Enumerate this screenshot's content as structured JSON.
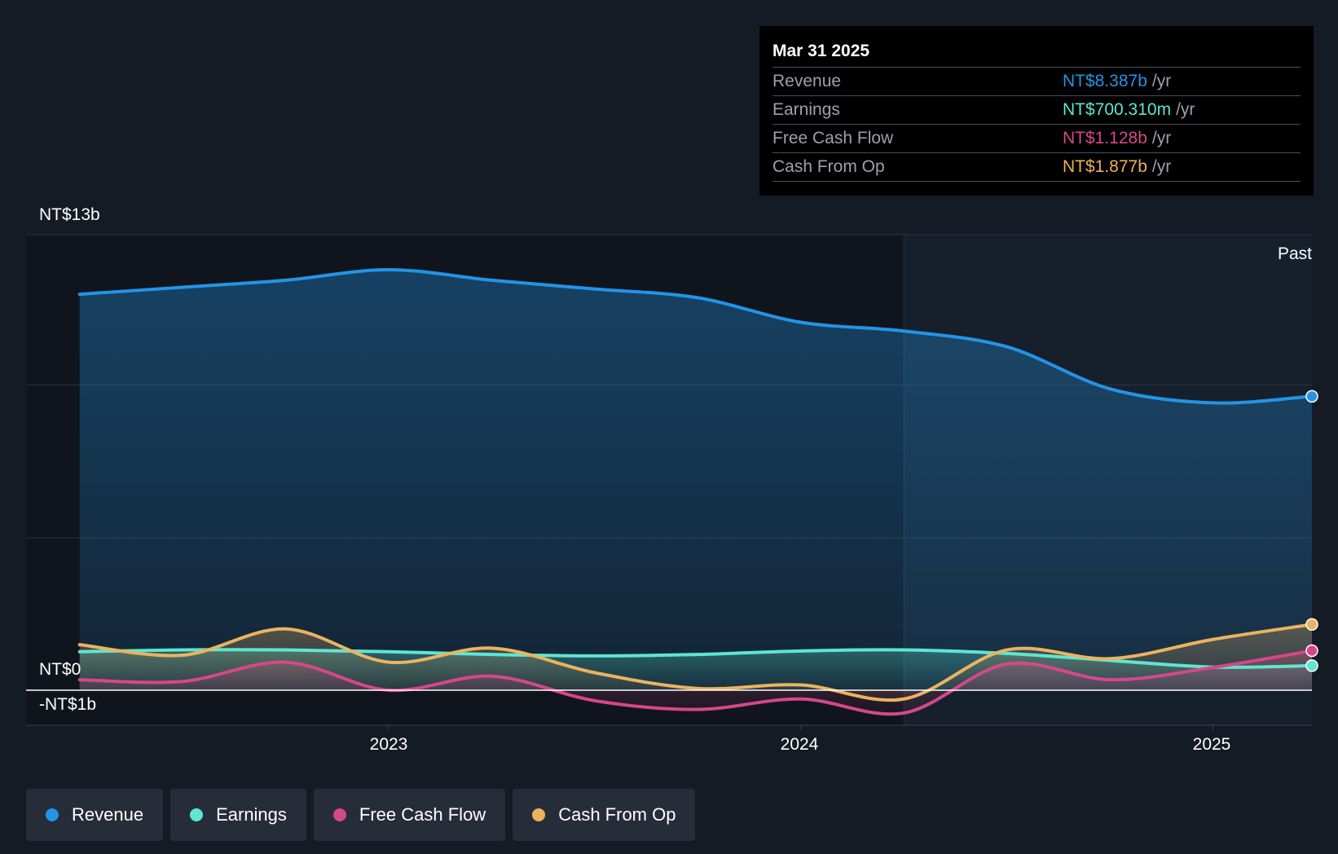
{
  "tooltip": {
    "date": "Mar 31 2025",
    "rows": [
      {
        "label": "Revenue",
        "value": "NT$8.387b",
        "unit": "/yr",
        "color": "#2394e6"
      },
      {
        "label": "Earnings",
        "value": "NT$700.310m",
        "unit": "/yr",
        "color": "#5ee6d2"
      },
      {
        "label": "Free Cash Flow",
        "value": "NT$1.128b",
        "unit": "/yr",
        "color": "#d6478a"
      },
      {
        "label": "Cash From Op",
        "value": "NT$1.877b",
        "unit": "/yr",
        "color": "#ebb360"
      }
    ]
  },
  "legend": [
    {
      "label": "Revenue",
      "color": "#2394e6"
    },
    {
      "label": "Earnings",
      "color": "#5ee6d2"
    },
    {
      "label": "Free Cash Flow",
      "color": "#d6478a"
    },
    {
      "label": "Cash From Op",
      "color": "#ebb360"
    }
  ],
  "chart_data": {
    "type": "line",
    "title": "",
    "y_label_top": "NT$13b",
    "y_label_zero": "NT$0",
    "y_label_bottom": "-NT$1b",
    "past_label": "Past",
    "ylim": [
      -1,
      13
    ],
    "xlim": [
      2022.12,
      2025.24
    ],
    "x_ticks": [
      {
        "value": 2023.0,
        "label": "2023"
      },
      {
        "value": 2024.0,
        "label": "2024"
      },
      {
        "value": 2025.0,
        "label": "2025"
      }
    ],
    "past_start": 2024.25,
    "series": [
      {
        "name": "Revenue",
        "color": "#2394e6",
        "x": [
          2022.25,
          2022.5,
          2022.75,
          2023.0,
          2023.25,
          2023.5,
          2023.75,
          2024.0,
          2024.25,
          2024.5,
          2024.75,
          2025.0,
          2025.24
        ],
        "values": [
          11.3,
          11.5,
          11.7,
          12.0,
          11.7,
          11.45,
          11.2,
          10.5,
          10.25,
          9.8,
          8.6,
          8.2,
          8.387
        ]
      },
      {
        "name": "Earnings",
        "color": "#5ee6d2",
        "x": [
          2022.25,
          2022.5,
          2022.75,
          2023.0,
          2023.25,
          2023.5,
          2023.75,
          2024.0,
          2024.25,
          2024.5,
          2024.75,
          2025.0,
          2025.24
        ],
        "values": [
          1.1,
          1.15,
          1.15,
          1.1,
          1.02,
          0.98,
          1.02,
          1.12,
          1.15,
          1.05,
          0.85,
          0.66,
          0.7
        ]
      },
      {
        "name": "Free Cash Flow",
        "color": "#d6478a",
        "x": [
          2022.25,
          2022.5,
          2022.75,
          2023.0,
          2023.25,
          2023.5,
          2023.75,
          2024.0,
          2024.25,
          2024.5,
          2024.75,
          2025.0,
          2025.24
        ],
        "values": [
          0.3,
          0.25,
          0.8,
          0.0,
          0.4,
          -0.3,
          -0.55,
          -0.25,
          -0.65,
          0.75,
          0.3,
          0.65,
          1.128
        ]
      },
      {
        "name": "Cash From Op",
        "color": "#ebb360",
        "x": [
          2022.25,
          2022.5,
          2022.75,
          2023.0,
          2023.25,
          2023.5,
          2023.75,
          2024.0,
          2024.25,
          2024.5,
          2024.75,
          2025.0,
          2025.24
        ],
        "values": [
          1.3,
          1.0,
          1.75,
          0.8,
          1.2,
          0.5,
          0.05,
          0.15,
          -0.25,
          1.15,
          0.9,
          1.45,
          1.877
        ]
      }
    ]
  }
}
